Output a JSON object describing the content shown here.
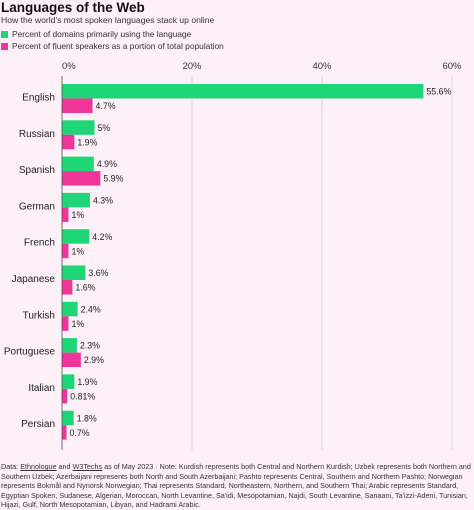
{
  "chart_data": {
    "type": "bar",
    "title": "Languages of the Web",
    "subtitle": "How the world's most spoken languages stack up online",
    "categories": [
      "English",
      "Russian",
      "Spanish",
      "German",
      "French",
      "Japanese",
      "Turkish",
      "Portuguese",
      "Italian",
      "Persian"
    ],
    "series": [
      {
        "name": "Percent of domains primarily using the language",
        "color": "#1ed676",
        "values": [
          55.6,
          5,
          4.9,
          4.3,
          4.2,
          3.6,
          2.4,
          2.3,
          1.9,
          1.8
        ],
        "labels": [
          "55.6%",
          "5%",
          "4.9%",
          "4.3%",
          "4.2%",
          "3.6%",
          "2.4%",
          "2.3%",
          "1.9%",
          "1.8%"
        ]
      },
      {
        "name": "Percent of fluent speakers as a portion of total population",
        "color": "#f0359a",
        "values": [
          4.7,
          1.9,
          5.9,
          1,
          1,
          1.6,
          1,
          2.9,
          0.81,
          0.7
        ],
        "labels": [
          "4.7%",
          "1.9%",
          "5.9%",
          "1%",
          "1%",
          "1.6%",
          "1%",
          "2.9%",
          "0.81%",
          "0.7%"
        ]
      }
    ],
    "xlim": [
      0,
      60
    ],
    "xticks": [
      0,
      20,
      40,
      60
    ],
    "xtick_labels": [
      "0%",
      "20%",
      "40%",
      "60%"
    ],
    "grid": true,
    "legend_position": "top-left",
    "orientation": "horizontal"
  },
  "footnote": {
    "prefix": "Data: ",
    "source1": "Ethnologue",
    "and": " and ",
    "source2": "W3Techs",
    "rest": " as of May 2023 · Note: Kurdish represents both Central and Northern Kurdish; Uzbek represents both Northern and Southern Uzbek; Azerbaijani represents both North and South Azerbaijani; Pashto represents Central, Southern and Northern Pashto; Norwegian represents Bokmål and Nynorsk Norwegian; Thai represents Standard, Northeastern, Northern, and Southern Thai; Arabic represents Standard, Egyptian Spoken, Sudanese, Algerian, Moroccan, North Levantine, Sa'idi, Mesopotamian, Najdi, South Levantine, Sanaani, Ta'izzi-Adeni, Tunisian, Hijazi, Gulf, North Mesopotamian, Libyan, and Hadrami Arabic."
  }
}
